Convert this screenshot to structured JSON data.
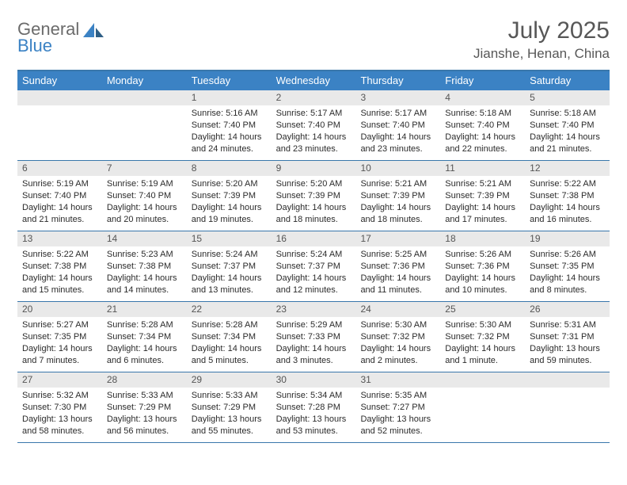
{
  "brand": {
    "general": "General",
    "blue": "Blue"
  },
  "title": "July 2025",
  "location": "Jianshe, Henan, China",
  "colors": {
    "header_bg": "#3b82c4",
    "rule": "#3977ab",
    "daynum_bg": "#e9e9e9",
    "text": "#2b2b2b",
    "title_text": "#575757"
  },
  "day_names": [
    "Sunday",
    "Monday",
    "Tuesday",
    "Wednesday",
    "Thursday",
    "Friday",
    "Saturday"
  ],
  "weeks": [
    [
      null,
      null,
      {
        "n": "1",
        "sr": "5:16 AM",
        "ss": "7:40 PM",
        "dl": "14 hours and 24 minutes."
      },
      {
        "n": "2",
        "sr": "5:17 AM",
        "ss": "7:40 PM",
        "dl": "14 hours and 23 minutes."
      },
      {
        "n": "3",
        "sr": "5:17 AM",
        "ss": "7:40 PM",
        "dl": "14 hours and 23 minutes."
      },
      {
        "n": "4",
        "sr": "5:18 AM",
        "ss": "7:40 PM",
        "dl": "14 hours and 22 minutes."
      },
      {
        "n": "5",
        "sr": "5:18 AM",
        "ss": "7:40 PM",
        "dl": "14 hours and 21 minutes."
      }
    ],
    [
      {
        "n": "6",
        "sr": "5:19 AM",
        "ss": "7:40 PM",
        "dl": "14 hours and 21 minutes."
      },
      {
        "n": "7",
        "sr": "5:19 AM",
        "ss": "7:40 PM",
        "dl": "14 hours and 20 minutes."
      },
      {
        "n": "8",
        "sr": "5:20 AM",
        "ss": "7:39 PM",
        "dl": "14 hours and 19 minutes."
      },
      {
        "n": "9",
        "sr": "5:20 AM",
        "ss": "7:39 PM",
        "dl": "14 hours and 18 minutes."
      },
      {
        "n": "10",
        "sr": "5:21 AM",
        "ss": "7:39 PM",
        "dl": "14 hours and 18 minutes."
      },
      {
        "n": "11",
        "sr": "5:21 AM",
        "ss": "7:39 PM",
        "dl": "14 hours and 17 minutes."
      },
      {
        "n": "12",
        "sr": "5:22 AM",
        "ss": "7:38 PM",
        "dl": "14 hours and 16 minutes."
      }
    ],
    [
      {
        "n": "13",
        "sr": "5:22 AM",
        "ss": "7:38 PM",
        "dl": "14 hours and 15 minutes."
      },
      {
        "n": "14",
        "sr": "5:23 AM",
        "ss": "7:38 PM",
        "dl": "14 hours and 14 minutes."
      },
      {
        "n": "15",
        "sr": "5:24 AM",
        "ss": "7:37 PM",
        "dl": "14 hours and 13 minutes."
      },
      {
        "n": "16",
        "sr": "5:24 AM",
        "ss": "7:37 PM",
        "dl": "14 hours and 12 minutes."
      },
      {
        "n": "17",
        "sr": "5:25 AM",
        "ss": "7:36 PM",
        "dl": "14 hours and 11 minutes."
      },
      {
        "n": "18",
        "sr": "5:26 AM",
        "ss": "7:36 PM",
        "dl": "14 hours and 10 minutes."
      },
      {
        "n": "19",
        "sr": "5:26 AM",
        "ss": "7:35 PM",
        "dl": "14 hours and 8 minutes."
      }
    ],
    [
      {
        "n": "20",
        "sr": "5:27 AM",
        "ss": "7:35 PM",
        "dl": "14 hours and 7 minutes."
      },
      {
        "n": "21",
        "sr": "5:28 AM",
        "ss": "7:34 PM",
        "dl": "14 hours and 6 minutes."
      },
      {
        "n": "22",
        "sr": "5:28 AM",
        "ss": "7:34 PM",
        "dl": "14 hours and 5 minutes."
      },
      {
        "n": "23",
        "sr": "5:29 AM",
        "ss": "7:33 PM",
        "dl": "14 hours and 3 minutes."
      },
      {
        "n": "24",
        "sr": "5:30 AM",
        "ss": "7:32 PM",
        "dl": "14 hours and 2 minutes."
      },
      {
        "n": "25",
        "sr": "5:30 AM",
        "ss": "7:32 PM",
        "dl": "14 hours and 1 minute."
      },
      {
        "n": "26",
        "sr": "5:31 AM",
        "ss": "7:31 PM",
        "dl": "13 hours and 59 minutes."
      }
    ],
    [
      {
        "n": "27",
        "sr": "5:32 AM",
        "ss": "7:30 PM",
        "dl": "13 hours and 58 minutes."
      },
      {
        "n": "28",
        "sr": "5:33 AM",
        "ss": "7:29 PM",
        "dl": "13 hours and 56 minutes."
      },
      {
        "n": "29",
        "sr": "5:33 AM",
        "ss": "7:29 PM",
        "dl": "13 hours and 55 minutes."
      },
      {
        "n": "30",
        "sr": "5:34 AM",
        "ss": "7:28 PM",
        "dl": "13 hours and 53 minutes."
      },
      {
        "n": "31",
        "sr": "5:35 AM",
        "ss": "7:27 PM",
        "dl": "13 hours and 52 minutes."
      },
      null,
      null
    ]
  ],
  "labels": {
    "sunrise": "Sunrise:",
    "sunset": "Sunset:",
    "daylight": "Daylight:"
  }
}
